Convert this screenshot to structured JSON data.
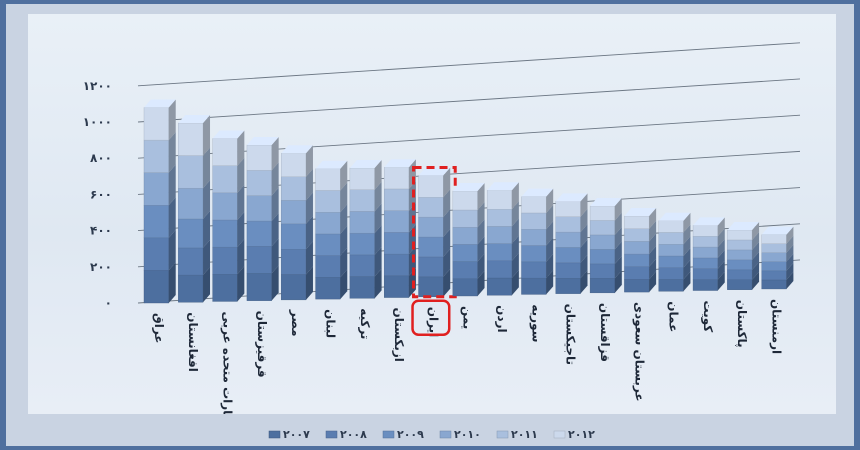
{
  "chart_data": {
    "type": "bar",
    "stacked": true,
    "style": "3d-column",
    "categories": [
      "عراق",
      "افغانستان",
      "امارات متحده عربی",
      "قرقیزستان",
      "مصر",
      "لبنان",
      "ترکیه",
      "ازبکستان",
      "ایران",
      "یمن",
      "اردن",
      "سوریه",
      "تاجیکستان",
      "قزاقستان",
      "عربستان سعودی",
      "عمان",
      "کویت",
      "پاکستان",
      "ارمنستان"
    ],
    "series": [
      {
        "name": "۲۰۰۷",
        "color": "#4d6f9f",
        "values": [
          180,
          150,
          150,
          150,
          140,
          120,
          120,
          120,
          110,
          95,
          95,
          90,
          85,
          80,
          70,
          65,
          60,
          55,
          50
        ]
      },
      {
        "name": "۲۰۰۸",
        "color": "#5a7db0",
        "values": [
          180,
          150,
          150,
          150,
          140,
          120,
          120,
          120,
          110,
          95,
          95,
          90,
          85,
          80,
          70,
          65,
          60,
          55,
          50
        ]
      },
      {
        "name": "۲۰۰۹",
        "color": "#6a8ec0",
        "values": [
          180,
          160,
          150,
          140,
          140,
          120,
          120,
          120,
          110,
          95,
          95,
          90,
          85,
          80,
          70,
          65,
          60,
          55,
          50
        ]
      },
      {
        "name": "۲۰۱۰",
        "color": "#89a7d0",
        "values": [
          180,
          170,
          150,
          140,
          130,
          120,
          120,
          120,
          110,
          95,
          95,
          90,
          85,
          80,
          70,
          65,
          60,
          55,
          50
        ]
      },
      {
        "name": "۲۰۱۱",
        "color": "#a9bfde",
        "values": [
          180,
          180,
          150,
          140,
          130,
          120,
          120,
          120,
          110,
          95,
          95,
          90,
          85,
          80,
          70,
          65,
          60,
          55,
          50
        ]
      },
      {
        "name": "۲۰۱۲",
        "color": "#ccd9ec",
        "values": [
          180,
          180,
          150,
          140,
          130,
          120,
          120,
          120,
          120,
          105,
          105,
          90,
          85,
          80,
          70,
          65,
          60,
          55,
          50
        ]
      }
    ],
    "yaxis_ticks": [
      "۰",
      "۲۰۰",
      "۴۰۰",
      "۶۰۰",
      "۸۰۰",
      "۱۰۰۰",
      "۱۲۰۰"
    ],
    "ylim": [
      0,
      1200
    ],
    "grid": true,
    "legend_position": "bottom",
    "highlight_category": "ایران",
    "highlight_color": "#e02020"
  }
}
